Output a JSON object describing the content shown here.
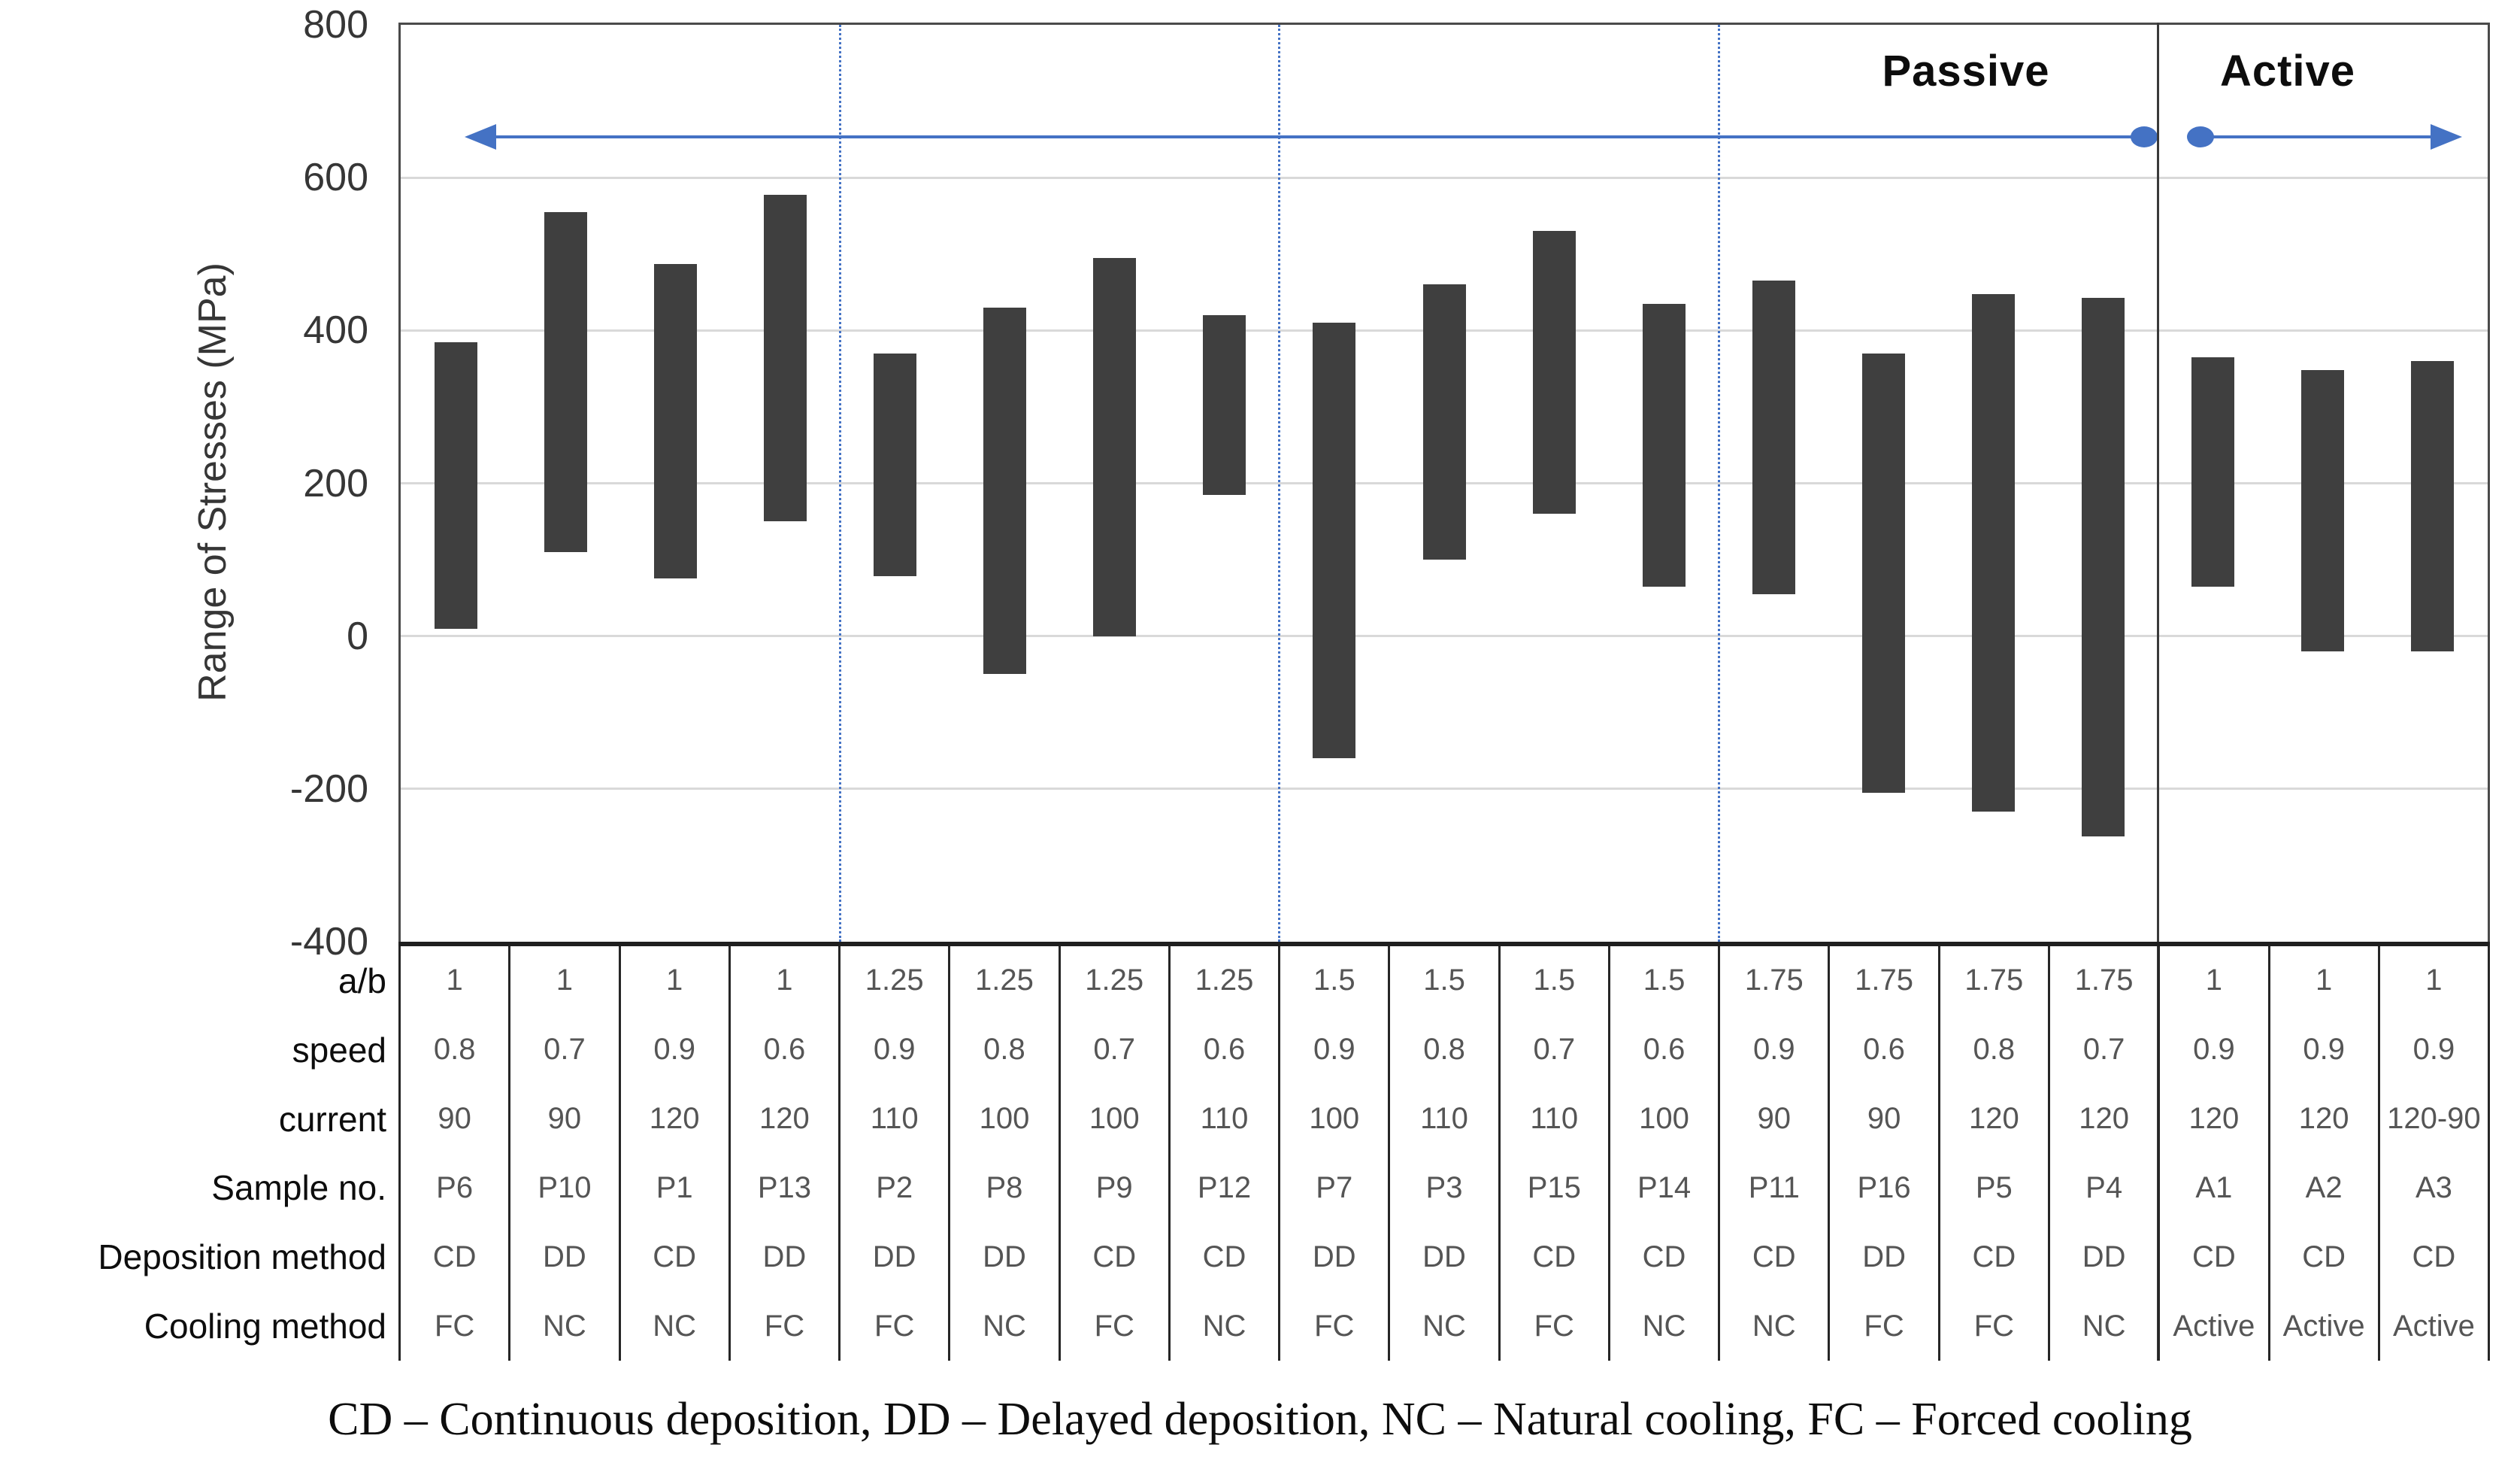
{
  "chart_data": {
    "type": "bar",
    "subtype": "floating-range-columns",
    "title": "",
    "xlabel": "",
    "ylabel": "Range of Stresses (MPa)",
    "ylim": [
      -400,
      800
    ],
    "yticks": [
      800,
      600,
      400,
      200,
      0,
      -200,
      -400
    ],
    "gridline_values": [
      600,
      400,
      200,
      0,
      -200
    ],
    "grid": "horizontal",
    "bar_color": "#3f3f3f",
    "accent_color": "#4472c4",
    "categories": [
      "P6",
      "P10",
      "P1",
      "P13",
      "P2",
      "P8",
      "P9",
      "P12",
      "P7",
      "P3",
      "P15",
      "P14",
      "P11",
      "P16",
      "P5",
      "P4",
      "A1",
      "A2",
      "A3"
    ],
    "series": [
      {
        "name": "P6",
        "low": 10,
        "high": 385
      },
      {
        "name": "P10",
        "low": 110,
        "high": 555
      },
      {
        "name": "P1",
        "low": 75,
        "high": 487
      },
      {
        "name": "P13",
        "low": 150,
        "high": 578
      },
      {
        "name": "P2",
        "low": 78,
        "high": 370
      },
      {
        "name": "P8",
        "low": -50,
        "high": 430
      },
      {
        "name": "P9",
        "low": 0,
        "high": 495
      },
      {
        "name": "P12",
        "low": 185,
        "high": 420
      },
      {
        "name": "P7",
        "low": -160,
        "high": 410
      },
      {
        "name": "P3",
        "low": 100,
        "high": 460
      },
      {
        "name": "P15",
        "low": 160,
        "high": 530
      },
      {
        "name": "P14",
        "low": 65,
        "high": 435
      },
      {
        "name": "P11",
        "low": 55,
        "high": 465
      },
      {
        "name": "P16",
        "low": -205,
        "high": 370
      },
      {
        "name": "P5",
        "low": -230,
        "high": 448
      },
      {
        "name": "P4",
        "low": -262,
        "high": 443
      },
      {
        "name": "A1",
        "low": 65,
        "high": 365
      },
      {
        "name": "A2",
        "low": -20,
        "high": 348
      },
      {
        "name": "A3",
        "low": -20,
        "high": 360
      }
    ],
    "groups": [
      {
        "label": "Passive",
        "columns": 16
      },
      {
        "label": "Active",
        "columns": 3
      }
    ],
    "dividers": {
      "dotted_after_columns": [
        4,
        8,
        12
      ],
      "solid_after_column": 16
    },
    "legend_position": "none"
  },
  "table": {
    "row_labels": [
      "a/b",
      "speed",
      "current",
      "Sample no.",
      "Deposition method",
      "Cooling method"
    ],
    "columns": [
      [
        "1",
        "0.8",
        "90",
        "P6",
        "CD",
        "FC"
      ],
      [
        "1",
        "0.7",
        "90",
        "P10",
        "DD",
        "NC"
      ],
      [
        "1",
        "0.9",
        "120",
        "P1",
        "CD",
        "NC"
      ],
      [
        "1",
        "0.6",
        "120",
        "P13",
        "DD",
        "FC"
      ],
      [
        "1.25",
        "0.9",
        "110",
        "P2",
        "DD",
        "FC"
      ],
      [
        "1.25",
        "0.8",
        "100",
        "P8",
        "DD",
        "NC"
      ],
      [
        "1.25",
        "0.7",
        "100",
        "P9",
        "CD",
        "FC"
      ],
      [
        "1.25",
        "0.6",
        "110",
        "P12",
        "CD",
        "NC"
      ],
      [
        "1.5",
        "0.9",
        "100",
        "P7",
        "DD",
        "FC"
      ],
      [
        "1.5",
        "0.8",
        "110",
        "P3",
        "DD",
        "NC"
      ],
      [
        "1.5",
        "0.7",
        "110",
        "P15",
        "CD",
        "FC"
      ],
      [
        "1.5",
        "0.6",
        "100",
        "P14",
        "CD",
        "NC"
      ],
      [
        "1.75",
        "0.9",
        "90",
        "P11",
        "CD",
        "NC"
      ],
      [
        "1.75",
        "0.6",
        "90",
        "P16",
        "DD",
        "FC"
      ],
      [
        "1.75",
        "0.8",
        "120",
        "P5",
        "CD",
        "FC"
      ],
      [
        "1.75",
        "0.7",
        "120",
        "P4",
        "DD",
        "NC"
      ],
      [
        "1",
        "0.9",
        "120",
        "A1",
        "CD",
        "Active"
      ],
      [
        "1",
        "0.9",
        "120",
        "A2",
        "CD",
        "Active"
      ],
      [
        "1",
        "0.9",
        "120-90",
        "A3",
        "CD",
        "Active"
      ]
    ]
  },
  "caption": "CD – Continuous deposition, DD – Delayed deposition, NC – Natural cooling, FC – Forced cooling"
}
